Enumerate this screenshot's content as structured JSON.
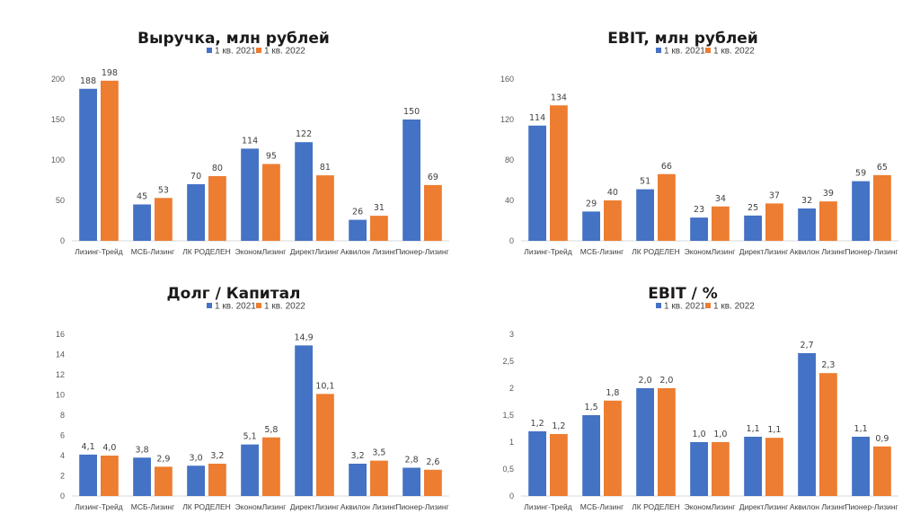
{
  "colors": {
    "series1": "#4472C4",
    "series2": "#ED7D31"
  },
  "chart_data": [
    {
      "type": "bar",
      "title": "Выручка, млн рублей",
      "categories": [
        "Лизинг-Трейд",
        "МСБ-Лизинг",
        "ЛК РОДЕЛЕН",
        "ЭкономЛизинг",
        "ДиректЛизинг",
        "Аквилон Лизинг",
        "Пионер-Лизинг"
      ],
      "series": [
        {
          "name": "1 кв. 2021",
          "values": [
            188,
            45,
            70,
            114,
            122,
            26,
            150
          ],
          "labels": [
            "188",
            "45",
            "70",
            "114",
            "122",
            "26",
            "150"
          ]
        },
        {
          "name": "1 кв. 2022",
          "values": [
            198,
            53,
            80,
            95,
            81,
            31,
            69
          ],
          "labels": [
            "198",
            "53",
            "80",
            "95",
            "81",
            "31",
            "69"
          ]
        }
      ],
      "ylim": [
        0,
        200
      ],
      "yticks": [
        "0",
        "50",
        "100",
        "150",
        "200"
      ],
      "ytick_values": [
        0,
        50,
        100,
        150,
        200
      ],
      "legend": "top",
      "grid": false
    },
    {
      "type": "bar",
      "title": "EBIT, млн рублей",
      "categories": [
        "Лизинг-Трейд",
        "МСБ-Лизинг",
        "ЛК РОДЕЛЕН",
        "ЭкономЛизинг",
        "ДиректЛизинг",
        "Аквилон Лизинг",
        "Пионер-Лизинг"
      ],
      "series": [
        {
          "name": "1 кв. 2021",
          "values": [
            114,
            29,
            51,
            23,
            25,
            32,
            59
          ],
          "labels": [
            "114",
            "29",
            "51",
            "23",
            "25",
            "32",
            "59"
          ]
        },
        {
          "name": "1 кв. 2022",
          "values": [
            134,
            40,
            66,
            34,
            37,
            39,
            65
          ],
          "labels": [
            "134",
            "40",
            "66",
            "34",
            "37",
            "39",
            "65"
          ]
        }
      ],
      "ylim": [
        0,
        160
      ],
      "yticks": [
        "0",
        "40",
        "80",
        "120",
        "160"
      ],
      "ytick_values": [
        0,
        40,
        80,
        120,
        160
      ],
      "legend": "top",
      "grid": false
    },
    {
      "type": "bar",
      "title": "Долг / Капитал",
      "categories": [
        "Лизинг-Трейд",
        "МСБ-Лизинг",
        "ЛК РОДЕЛЕН",
        "ЭкономЛизинг",
        "ДиректЛизинг",
        "Аквилон Лизинг",
        "Пионер-Лизинг"
      ],
      "series": [
        {
          "name": "1 кв. 2021",
          "values": [
            4.1,
            3.8,
            3.0,
            5.1,
            14.9,
            3.2,
            2.8
          ],
          "labels": [
            "4,1",
            "3,8",
            "3,0",
            "5,1",
            "14,9",
            "3,2",
            "2,8"
          ]
        },
        {
          "name": "1 кв. 2022",
          "values": [
            4.0,
            2.9,
            3.2,
            5.8,
            10.1,
            3.5,
            2.6
          ],
          "labels": [
            "4,0",
            "2,9",
            "3,2",
            "5,8",
            "10,1",
            "3,5",
            "2,6"
          ]
        }
      ],
      "ylim": [
        0,
        16
      ],
      "yticks": [
        "0",
        "2",
        "4",
        "6",
        "8",
        "10",
        "12",
        "14",
        "16"
      ],
      "ytick_values": [
        0,
        2,
        4,
        6,
        8,
        10,
        12,
        14,
        16
      ],
      "legend": "top",
      "grid": false
    },
    {
      "type": "bar",
      "title": "EBIT / %",
      "categories": [
        "Лизинг-Трейд",
        "МСБ-Лизинг",
        "ЛК РОДЕЛЕН",
        "ЭкономЛизинг",
        "ДиректЛизинг",
        "Аквилон Лизинг",
        "Пионер-Лизинг"
      ],
      "series": [
        {
          "name": "1 кв. 2021",
          "values": [
            1.2,
            1.5,
            2.0,
            1.0,
            1.1,
            2.65,
            1.1
          ],
          "labels": [
            "1,2",
            "1,5",
            "2,0",
            "1,0",
            "1,1",
            "2,7",
            "1,1"
          ]
        },
        {
          "name": "1 кв. 2022",
          "values": [
            1.15,
            1.77,
            2.0,
            1.0,
            1.08,
            2.28,
            0.92
          ],
          "labels": [
            "1,2",
            "1,8",
            "2,0",
            "1,0",
            "1,1",
            "2,3",
            "0,9"
          ]
        }
      ],
      "ylim": [
        0,
        3
      ],
      "yticks": [
        "0",
        "0,5",
        "1",
        "1,5",
        "2",
        "2,5",
        "3"
      ],
      "ytick_values": [
        0,
        0.5,
        1,
        1.5,
        2,
        2.5,
        3
      ],
      "legend": "top",
      "grid": false
    }
  ]
}
